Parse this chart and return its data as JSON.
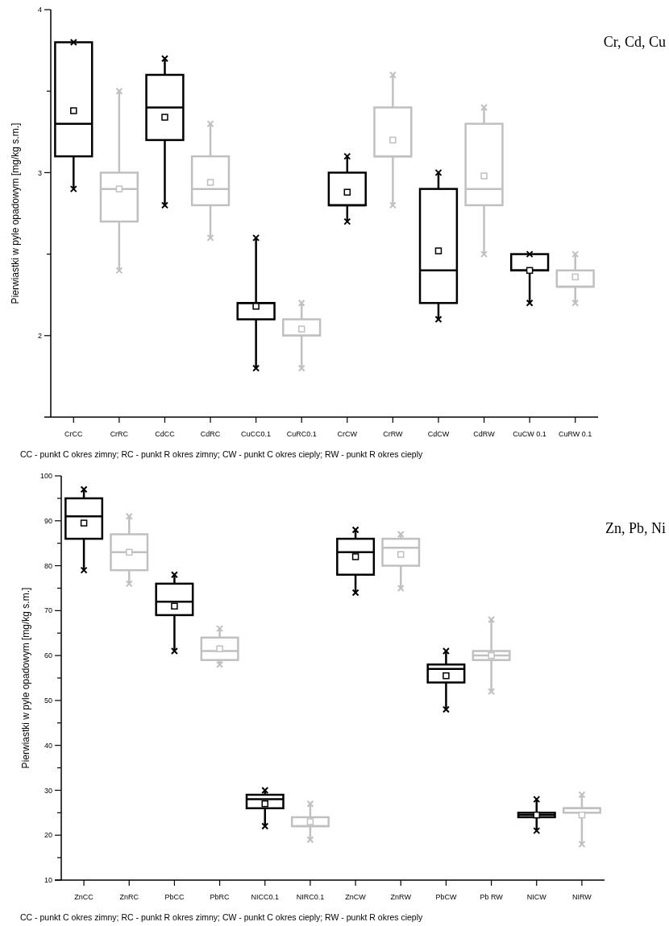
{
  "chart_data": [
    {
      "type": "box",
      "title": "Cr, Cd, Cu",
      "ylabel": "Pierwiastki w pyle opadowym [mg/kg s.m.]",
      "annotations": [
        "CC - punkt C okres zimny; RC - punkt R okres zimny; CW - punkt C okres cieply; RW - punkt R okres cieply"
      ],
      "marker": "cross",
      "categories": [
        "CrCC",
        "CrRC",
        "CdCC",
        "CdRC",
        "CuCC0.1",
        "CuRC0.1",
        "CrCW",
        "CrRW",
        "CdCW",
        "CdRW",
        "CuCW 0.1",
        "CuRW 0.1"
      ],
      "colors": [
        "#000000",
        "#c0c0c0",
        "#000000",
        "#c0c0c0",
        "#000000",
        "#c0c0c0",
        "#000000",
        "#c0c0c0",
        "#000000",
        "#c0c0c0",
        "#000000",
        "#c0c0c0"
      ],
      "boxes": [
        {
          "low": 2.9,
          "q1": 3.1,
          "median": 3.3,
          "q3": 3.8,
          "high": 3.8,
          "mean": 3.38,
          "outliers": [
            2.9,
            3.8
          ]
        },
        {
          "low": 2.4,
          "q1": 2.7,
          "median": 2.9,
          "q3": 3.0,
          "high": 3.5,
          "mean": 2.9,
          "outliers": [
            2.4,
            3.5
          ]
        },
        {
          "low": 2.8,
          "q1": 3.2,
          "median": 3.4,
          "q3": 3.6,
          "high": 3.7,
          "mean": 3.34,
          "outliers": [
            2.8,
            3.7
          ]
        },
        {
          "low": 2.6,
          "q1": 2.8,
          "median": 2.9,
          "q3": 3.1,
          "high": 3.3,
          "mean": 2.94,
          "outliers": [
            2.6,
            3.3
          ]
        },
        {
          "low": 1.8,
          "q1": 2.1,
          "median": 2.2,
          "q3": 2.2,
          "high": 2.6,
          "mean": 2.18,
          "outliers": [
            1.8,
            2.6
          ]
        },
        {
          "low": 1.8,
          "q1": 2.0,
          "median": 2.0,
          "q3": 2.1,
          "high": 2.2,
          "mean": 2.04,
          "outliers": [
            1.8,
            2.2
          ]
        },
        {
          "low": 2.7,
          "q1": 2.8,
          "median": 2.8,
          "q3": 3.0,
          "high": 3.1,
          "mean": 2.88,
          "outliers": [
            2.7,
            3.1
          ]
        },
        {
          "low": 2.8,
          "q1": 3.1,
          "median": 3.1,
          "q3": 3.4,
          "high": 3.6,
          "mean": 3.2,
          "outliers": [
            2.8,
            3.6
          ]
        },
        {
          "low": 2.1,
          "q1": 2.2,
          "median": 2.4,
          "q3": 2.9,
          "high": 3.0,
          "mean": 2.52,
          "outliers": [
            2.1,
            3.0
          ]
        },
        {
          "low": 2.5,
          "q1": 2.8,
          "median": 2.9,
          "q3": 3.3,
          "high": 3.4,
          "mean": 2.98,
          "outliers": [
            2.5,
            3.4
          ]
        },
        {
          "low": 2.2,
          "q1": 2.4,
          "median": 2.4,
          "q3": 2.5,
          "high": 2.5,
          "mean": 2.4,
          "outliers": [
            2.2,
            2.5
          ]
        },
        {
          "low": 2.2,
          "q1": 2.3,
          "median": 2.3,
          "q3": 2.4,
          "high": 2.5,
          "mean": 2.36,
          "outliers": [
            2.2,
            2.5
          ]
        }
      ],
      "ylim": [
        1.5,
        4
      ],
      "yticks": [
        {
          "value": 2,
          "label": "2"
        },
        {
          "value": 2.5,
          "label": null
        },
        {
          "value": 3,
          "label": "3"
        },
        {
          "value": 3.5,
          "label": null
        },
        {
          "value": 4,
          "label": "4"
        }
      ]
    },
    {
      "type": "box",
      "title": "Zn, Pb, Ni",
      "ylabel": "Pierwiastki w pyle opadowym [mg/kg s.m.]",
      "annotations": [
        "CC - punkt C okres zimny; RC - punkt R okres zimny; CW - punkt C okres cieply; RW - punkt R okres cieply"
      ],
      "marker": "cross",
      "categories": [
        "ZnCC",
        "ZnRC",
        "PbCC",
        "PbRC",
        "NICC0.1",
        "NIRC0.1",
        "ZnCW",
        "ZnRW",
        "PbCW",
        "Pb RW",
        "NICW",
        "NIRW"
      ],
      "colors": [
        "#000000",
        "#c0c0c0",
        "#000000",
        "#c0c0c0",
        "#000000",
        "#c0c0c0",
        "#000000",
        "#c0c0c0",
        "#000000",
        "#c0c0c0",
        "#000000",
        "#c0c0c0"
      ],
      "boxes": [
        {
          "low": 79,
          "q1": 86,
          "median": 91,
          "q3": 95,
          "high": 97,
          "mean": 89.5,
          "outliers": [
            79,
            97
          ]
        },
        {
          "low": 76,
          "q1": 79,
          "median": 83,
          "q3": 87,
          "high": 91,
          "mean": 83,
          "outliers": [
            76,
            91
          ]
        },
        {
          "low": 61,
          "q1": 69,
          "median": 72,
          "q3": 76,
          "high": 78,
          "mean": 71,
          "outliers": [
            61,
            78
          ]
        },
        {
          "low": 58,
          "q1": 59,
          "median": 61,
          "q3": 64,
          "high": 66,
          "mean": 61.5,
          "outliers": [
            58,
            66
          ]
        },
        {
          "low": 22,
          "q1": 26,
          "median": 28,
          "q3": 29,
          "high": 30,
          "mean": 27,
          "outliers": [
            22,
            30
          ]
        },
        {
          "low": 19,
          "q1": 22,
          "median": 22,
          "q3": 24,
          "high": 27,
          "mean": 23,
          "outliers": [
            19,
            27
          ]
        },
        {
          "low": 74,
          "q1": 78,
          "median": 83,
          "q3": 86,
          "high": 88,
          "mean": 82,
          "outliers": [
            74,
            88
          ]
        },
        {
          "low": 75,
          "q1": 80,
          "median": 84,
          "q3": 86,
          "high": 87,
          "mean": 82.5,
          "outliers": [
            75,
            87
          ]
        },
        {
          "low": 48,
          "q1": 54,
          "median": 57,
          "q3": 58,
          "high": 61,
          "mean": 55.5,
          "outliers": [
            48,
            61
          ]
        },
        {
          "low": 52,
          "q1": 59,
          "median": 60,
          "q3": 61,
          "high": 68,
          "mean": 60,
          "outliers": [
            52,
            68
          ]
        },
        {
          "low": 21,
          "q1": 24,
          "median": 24.5,
          "q3": 25,
          "high": 28,
          "mean": 24.5,
          "outliers": [
            21,
            28
          ]
        },
        {
          "low": 18,
          "q1": 25,
          "median": 26,
          "q3": 26,
          "high": 29,
          "mean": 24.5,
          "outliers": [
            18,
            29
          ]
        }
      ],
      "ylim": [
        10,
        100
      ],
      "yticks": [
        {
          "value": 10,
          "label": "10"
        },
        {
          "value": 15,
          "label": null
        },
        {
          "value": 20,
          "label": "20"
        },
        {
          "value": 25,
          "label": null
        },
        {
          "value": 30,
          "label": "30"
        },
        {
          "value": 35,
          "label": null
        },
        {
          "value": 40,
          "label": "40"
        },
        {
          "value": 45,
          "label": null
        },
        {
          "value": 50,
          "label": "50"
        },
        {
          "value": 55,
          "label": null
        },
        {
          "value": 60,
          "label": "60"
        },
        {
          "value": 65,
          "label": null
        },
        {
          "value": 70,
          "label": "70"
        },
        {
          "value": 75,
          "label": null
        },
        {
          "value": 80,
          "label": "80"
        },
        {
          "value": 85,
          "label": null
        },
        {
          "value": 90,
          "label": "90"
        },
        {
          "value": 95,
          "label": null
        },
        {
          "value": 100,
          "label": "100"
        }
      ]
    }
  ]
}
